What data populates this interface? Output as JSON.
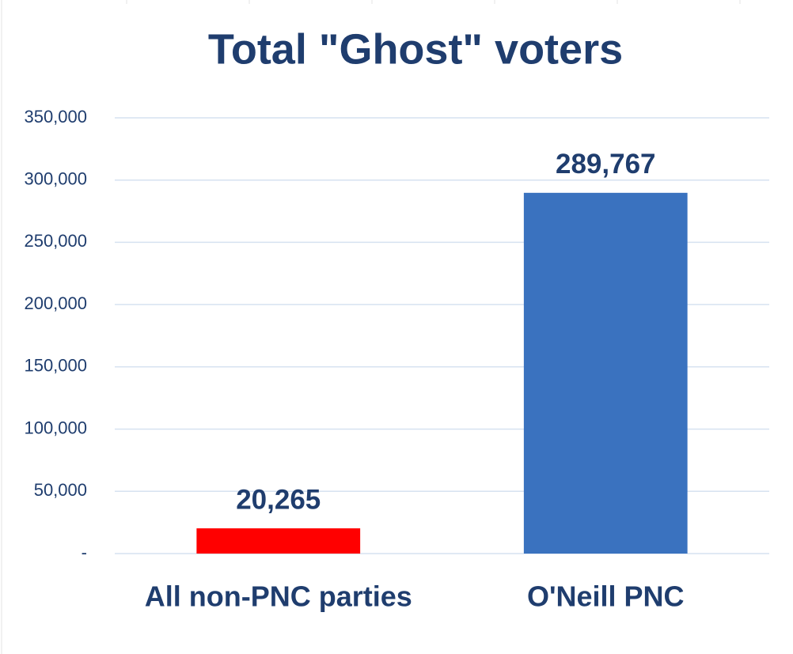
{
  "chart_data": {
    "type": "bar",
    "title": "Total \"Ghost\" voters",
    "categories": [
      "All non-PNC parties",
      "O'Neill PNC"
    ],
    "values": [
      20265,
      289767
    ],
    "value_labels": [
      "20,265",
      "289,767"
    ],
    "colors": [
      "#ff0000",
      "#3a72bf"
    ],
    "ylim": [
      0,
      350000
    ],
    "yticks": [
      {
        "value": 0,
        "label": "-"
      },
      {
        "value": 50000,
        "label": "50,000"
      },
      {
        "value": 100000,
        "label": "100,000"
      },
      {
        "value": 150000,
        "label": "150,000"
      },
      {
        "value": 200000,
        "label": "200,000"
      },
      {
        "value": 250000,
        "label": "250,000"
      },
      {
        "value": 300000,
        "label": "300,000"
      },
      {
        "value": 350000,
        "label": "350,000"
      }
    ],
    "grid": true
  }
}
